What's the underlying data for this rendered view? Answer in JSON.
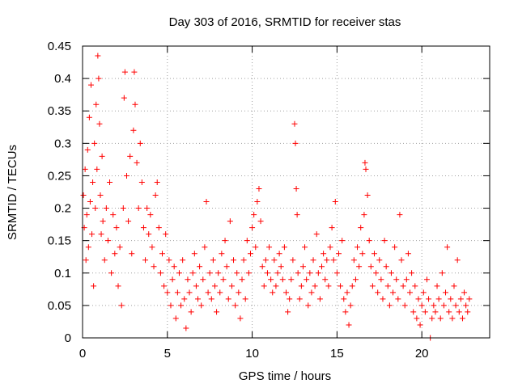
{
  "chart_data": {
    "type": "scatter",
    "title": "Day 303 of 2016, SRMTID for receiver stas",
    "xlabel": "GPS time / hours",
    "ylabel": "SRMTID / TECUs",
    "xlim": [
      0,
      24
    ],
    "ylim": [
      0,
      0.45
    ],
    "x_ticks": [
      0,
      5,
      10,
      15,
      20
    ],
    "x_tick_labels": [
      "0",
      "5",
      "10",
      "15",
      "20"
    ],
    "y_ticks": [
      0,
      0.05,
      0.1,
      0.15,
      0.2,
      0.25,
      0.3,
      0.35,
      0.4,
      0.45
    ],
    "y_tick_labels": [
      "0",
      "0.05",
      "0.1",
      "0.15",
      "0.2",
      "0.25",
      "0.3",
      "0.35",
      "0.4",
      "0.45"
    ],
    "grid": true,
    "marker": "plus",
    "color": "#ff0000",
    "series": [
      {
        "name": "SRMTID",
        "points": [
          [
            0.05,
            0.22
          ],
          [
            0.1,
            0.17
          ],
          [
            0.15,
            0.26
          ],
          [
            0.2,
            0.12
          ],
          [
            0.25,
            0.19
          ],
          [
            0.3,
            0.29
          ],
          [
            0.35,
            0.14
          ],
          [
            0.4,
            0.34
          ],
          [
            0.45,
            0.21
          ],
          [
            0.5,
            0.39
          ],
          [
            0.55,
            0.16
          ],
          [
            0.6,
            0.24
          ],
          [
            0.65,
            0.08
          ],
          [
            0.7,
            0.3
          ],
          [
            0.75,
            0.2
          ],
          [
            0.8,
            0.36
          ],
          [
            0.85,
            0.26
          ],
          [
            0.9,
            0.435
          ],
          [
            0.95,
            0.4
          ],
          [
            1.0,
            0.33
          ],
          [
            1.05,
            0.22
          ],
          [
            1.1,
            0.16
          ],
          [
            1.15,
            0.28
          ],
          [
            1.2,
            0.18
          ],
          [
            1.3,
            0.12
          ],
          [
            1.4,
            0.2
          ],
          [
            1.5,
            0.15
          ],
          [
            1.6,
            0.24
          ],
          [
            1.7,
            0.1
          ],
          [
            1.8,
            0.19
          ],
          [
            1.9,
            0.13
          ],
          [
            2.0,
            0.17
          ],
          [
            2.1,
            0.08
          ],
          [
            2.2,
            0.14
          ],
          [
            2.3,
            0.05
          ],
          [
            2.4,
            0.2
          ],
          [
            2.45,
            0.37
          ],
          [
            2.5,
            0.41
          ],
          [
            2.6,
            0.25
          ],
          [
            2.7,
            0.18
          ],
          [
            2.8,
            0.28
          ],
          [
            2.9,
            0.13
          ],
          [
            3.0,
            0.32
          ],
          [
            3.05,
            0.41
          ],
          [
            3.1,
            0.36
          ],
          [
            3.2,
            0.27
          ],
          [
            3.3,
            0.2
          ],
          [
            3.4,
            0.3
          ],
          [
            3.5,
            0.24
          ],
          [
            3.6,
            0.17
          ],
          [
            3.7,
            0.12
          ],
          [
            3.8,
            0.2
          ],
          [
            3.9,
            0.16
          ],
          [
            4.0,
            0.19
          ],
          [
            4.1,
            0.14
          ],
          [
            4.2,
            0.11
          ],
          [
            4.3,
            0.22
          ],
          [
            4.4,
            0.24
          ],
          [
            4.5,
            0.17
          ],
          [
            4.6,
            0.1
          ],
          [
            4.7,
            0.13
          ],
          [
            4.8,
            0.08
          ],
          [
            4.9,
            0.16
          ],
          [
            5.0,
            0.07
          ],
          [
            5.1,
            0.12
          ],
          [
            5.2,
            0.05
          ],
          [
            5.3,
            0.09
          ],
          [
            5.4,
            0.11
          ],
          [
            5.5,
            0.03
          ],
          [
            5.6,
            0.07
          ],
          [
            5.7,
            0.1
          ],
          [
            5.8,
            0.05
          ],
          [
            5.9,
            0.12
          ],
          [
            6.0,
            0.06
          ],
          [
            6.1,
            0.015
          ],
          [
            6.2,
            0.09
          ],
          [
            6.3,
            0.07
          ],
          [
            6.4,
            0.04
          ],
          [
            6.5,
            0.1
          ],
          [
            6.6,
            0.13
          ],
          [
            6.7,
            0.08
          ],
          [
            6.8,
            0.06
          ],
          [
            6.9,
            0.11
          ],
          [
            7.0,
            0.05
          ],
          [
            7.1,
            0.09
          ],
          [
            7.2,
            0.14
          ],
          [
            7.3,
            0.21
          ],
          [
            7.4,
            0.07
          ],
          [
            7.5,
            0.1
          ],
          [
            7.6,
            0.06
          ],
          [
            7.7,
            0.12
          ],
          [
            7.8,
            0.08
          ],
          [
            7.9,
            0.04
          ],
          [
            8.0,
            0.1
          ],
          [
            8.1,
            0.07
          ],
          [
            8.2,
            0.13
          ],
          [
            8.3,
            0.09
          ],
          [
            8.4,
            0.15
          ],
          [
            8.5,
            0.11
          ],
          [
            8.6,
            0.06
          ],
          [
            8.7,
            0.18
          ],
          [
            8.8,
            0.08
          ],
          [
            8.9,
            0.12
          ],
          [
            9.0,
            0.05
          ],
          [
            9.1,
            0.1
          ],
          [
            9.2,
            0.07
          ],
          [
            9.3,
            0.03
          ],
          [
            9.4,
            0.09
          ],
          [
            9.5,
            0.12
          ],
          [
            9.6,
            0.06
          ],
          [
            9.7,
            0.15
          ],
          [
            9.8,
            0.1
          ],
          [
            9.9,
            0.13
          ],
          [
            10.0,
            0.17
          ],
          [
            10.1,
            0.19
          ],
          [
            10.2,
            0.14
          ],
          [
            10.3,
            0.21
          ],
          [
            10.4,
            0.23
          ],
          [
            10.5,
            0.18
          ],
          [
            10.6,
            0.11
          ],
          [
            10.7,
            0.08
          ],
          [
            10.8,
            0.12
          ],
          [
            10.9,
            0.1
          ],
          [
            11.0,
            0.14
          ],
          [
            11.1,
            0.09
          ],
          [
            11.2,
            0.07
          ],
          [
            11.3,
            0.12
          ],
          [
            11.4,
            0.08
          ],
          [
            11.5,
            0.1
          ],
          [
            11.6,
            0.13
          ],
          [
            11.7,
            0.11
          ],
          [
            11.8,
            0.09
          ],
          [
            11.9,
            0.14
          ],
          [
            12.0,
            0.07
          ],
          [
            12.1,
            0.04
          ],
          [
            12.2,
            0.06
          ],
          [
            12.3,
            0.09
          ],
          [
            12.4,
            0.12
          ],
          [
            12.5,
            0.33
          ],
          [
            12.55,
            0.3
          ],
          [
            12.6,
            0.23
          ],
          [
            12.65,
            0.19
          ],
          [
            12.7,
            0.1
          ],
          [
            12.8,
            0.06
          ],
          [
            12.9,
            0.08
          ],
          [
            13.0,
            0.11
          ],
          [
            13.1,
            0.14
          ],
          [
            13.2,
            0.09
          ],
          [
            13.3,
            0.05
          ],
          [
            13.4,
            0.1
          ],
          [
            13.5,
            0.07
          ],
          [
            13.6,
            0.12
          ],
          [
            13.7,
            0.08
          ],
          [
            13.8,
            0.16
          ],
          [
            13.9,
            0.1
          ],
          [
            14.0,
            0.06
          ],
          [
            14.1,
            0.11
          ],
          [
            14.2,
            0.13
          ],
          [
            14.3,
            0.09
          ],
          [
            14.4,
            0.12
          ],
          [
            14.5,
            0.08
          ],
          [
            14.6,
            0.14
          ],
          [
            14.7,
            0.17
          ],
          [
            14.8,
            0.12
          ],
          [
            14.9,
            0.21
          ],
          [
            15.0,
            0.1
          ],
          [
            15.1,
            0.13
          ],
          [
            15.2,
            0.08
          ],
          [
            15.3,
            0.15
          ],
          [
            15.4,
            0.06
          ],
          [
            15.5,
            0.04
          ],
          [
            15.6,
            0.07
          ],
          [
            15.7,
            0.02
          ],
          [
            15.8,
            0.05
          ],
          [
            15.9,
            0.08
          ],
          [
            16.0,
            0.12
          ],
          [
            16.1,
            0.09
          ],
          [
            16.2,
            0.14
          ],
          [
            16.3,
            0.11
          ],
          [
            16.4,
            0.17
          ],
          [
            16.5,
            0.13
          ],
          [
            16.6,
            0.19
          ],
          [
            16.65,
            0.27
          ],
          [
            16.7,
            0.26
          ],
          [
            16.8,
            0.22
          ],
          [
            16.9,
            0.15
          ],
          [
            17.0,
            0.11
          ],
          [
            17.1,
            0.08
          ],
          [
            17.2,
            0.13
          ],
          [
            17.3,
            0.1
          ],
          [
            17.4,
            0.07
          ],
          [
            17.5,
            0.12
          ],
          [
            17.6,
            0.09
          ],
          [
            17.7,
            0.06
          ],
          [
            17.8,
            0.15
          ],
          [
            17.9,
            0.11
          ],
          [
            18.0,
            0.08
          ],
          [
            18.1,
            0.05
          ],
          [
            18.2,
            0.1
          ],
          [
            18.3,
            0.07
          ],
          [
            18.4,
            0.14
          ],
          [
            18.5,
            0.09
          ],
          [
            18.6,
            0.06
          ],
          [
            18.7,
            0.19
          ],
          [
            18.8,
            0.12
          ],
          [
            18.9,
            0.08
          ],
          [
            19.0,
            0.05
          ],
          [
            19.1,
            0.09
          ],
          [
            19.2,
            0.13
          ],
          [
            19.3,
            0.07
          ],
          [
            19.4,
            0.1
          ],
          [
            19.5,
            0.04
          ],
          [
            19.6,
            0.08
          ],
          [
            19.7,
            0.03
          ],
          [
            19.8,
            0.06
          ],
          [
            19.9,
            0.02
          ],
          [
            20.0,
            0.05
          ],
          [
            20.1,
            0.07
          ],
          [
            20.2,
            0.04
          ],
          [
            20.3,
            0.09
          ],
          [
            20.4,
            0.06
          ],
          [
            20.5,
            0.0
          ],
          [
            20.6,
            0.03
          ],
          [
            20.7,
            0.05
          ],
          [
            20.8,
            0.04
          ],
          [
            20.9,
            0.08
          ],
          [
            21.0,
            0.06
          ],
          [
            21.1,
            0.03
          ],
          [
            21.2,
            0.1
          ],
          [
            21.3,
            0.05
          ],
          [
            21.4,
            0.07
          ],
          [
            21.5,
            0.14
          ],
          [
            21.6,
            0.04
          ],
          [
            21.7,
            0.06
          ],
          [
            21.8,
            0.03
          ],
          [
            21.9,
            0.08
          ],
          [
            22.0,
            0.05
          ],
          [
            22.1,
            0.12
          ],
          [
            22.2,
            0.04
          ],
          [
            22.3,
            0.06
          ],
          [
            22.4,
            0.03
          ],
          [
            22.5,
            0.07
          ],
          [
            22.6,
            0.05
          ],
          [
            22.7,
            0.04
          ],
          [
            22.8,
            0.06
          ]
        ]
      }
    ]
  }
}
